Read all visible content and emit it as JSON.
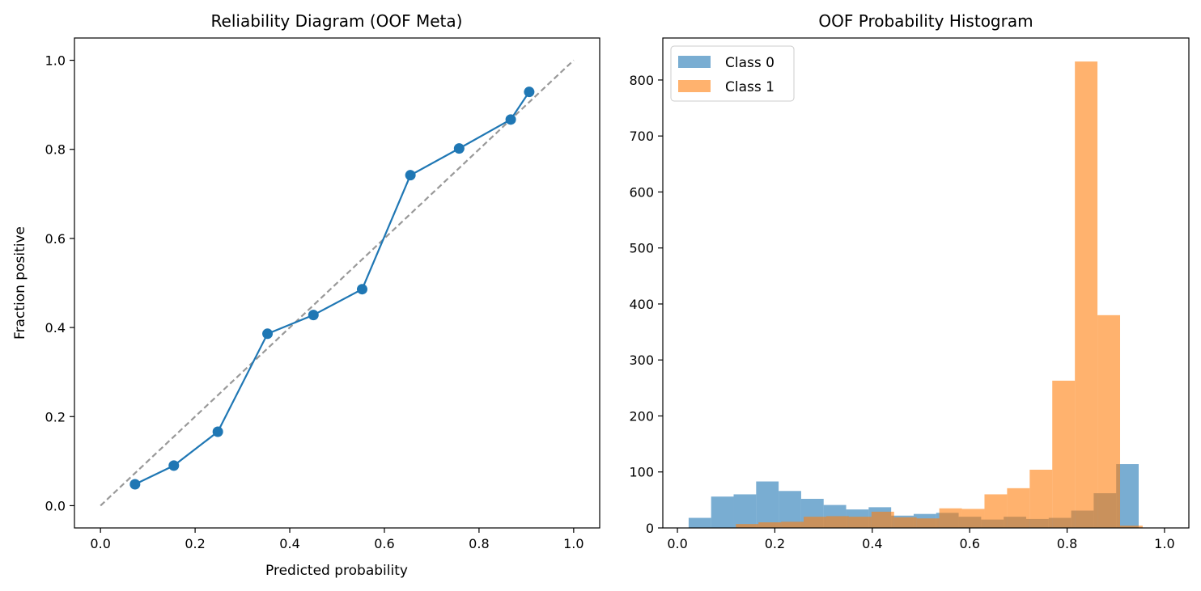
{
  "chart_data": [
    {
      "type": "line",
      "title": "Reliability Diagram (OOF Meta)",
      "xlabel": "Predicted probability",
      "ylabel": "Fraction positive",
      "xlim": [
        -0.055,
        1.055
      ],
      "ylim": [
        -0.05,
        1.05
      ],
      "xticks": [
        "0.0",
        "0.2",
        "0.4",
        "0.6",
        "0.8",
        "1.0"
      ],
      "yticks": [
        "0.0",
        "0.2",
        "0.4",
        "0.6",
        "0.8",
        "1.0"
      ],
      "grid": false,
      "series": [
        {
          "style": "solid-markers",
          "color": "#1f77b4",
          "x": [
            0.073,
            0.155,
            0.248,
            0.353,
            0.45,
            0.553,
            0.655,
            0.758,
            0.867,
            0.906
          ],
          "y": [
            0.048,
            0.09,
            0.166,
            0.386,
            0.428,
            0.486,
            0.742,
            0.802,
            0.867,
            0.929
          ]
        },
        {
          "style": "dashed-reference",
          "color": "#999999",
          "x": [
            0.0,
            1.0
          ],
          "y": [
            0.0,
            1.0
          ]
        }
      ]
    },
    {
      "type": "bar",
      "title": "OOF Probability Histogram",
      "xlim": [
        -0.03,
        1.05
      ],
      "ylim": [
        0,
        875
      ],
      "xticks": [
        "0.0",
        "0.2",
        "0.4",
        "0.6",
        "0.8",
        "1.0"
      ],
      "yticks": [
        "0",
        "100",
        "200",
        "300",
        "400",
        "500",
        "600",
        "700",
        "800"
      ],
      "grid": false,
      "legend_position": "top-left",
      "series": [
        {
          "name": "Class 0",
          "color": "#1f77b4",
          "opacity": 0.6,
          "bin_start": 0.023,
          "bin_width": 0.0462,
          "counts": [
            18,
            56,
            60,
            83,
            66,
            52,
            41,
            33,
            37,
            22,
            25,
            27,
            20,
            15,
            20,
            16,
            18,
            31,
            62,
            114
          ]
        },
        {
          "name": "Class 1",
          "color": "#ff7f0e",
          "opacity": 0.6,
          "bin_start": 0.12,
          "bin_width": 0.0464,
          "counts": [
            7,
            10,
            11,
            20,
            21,
            20,
            29,
            19,
            17,
            35,
            34,
            60,
            71,
            104,
            263,
            833,
            380,
            4
          ]
        }
      ]
    }
  ]
}
